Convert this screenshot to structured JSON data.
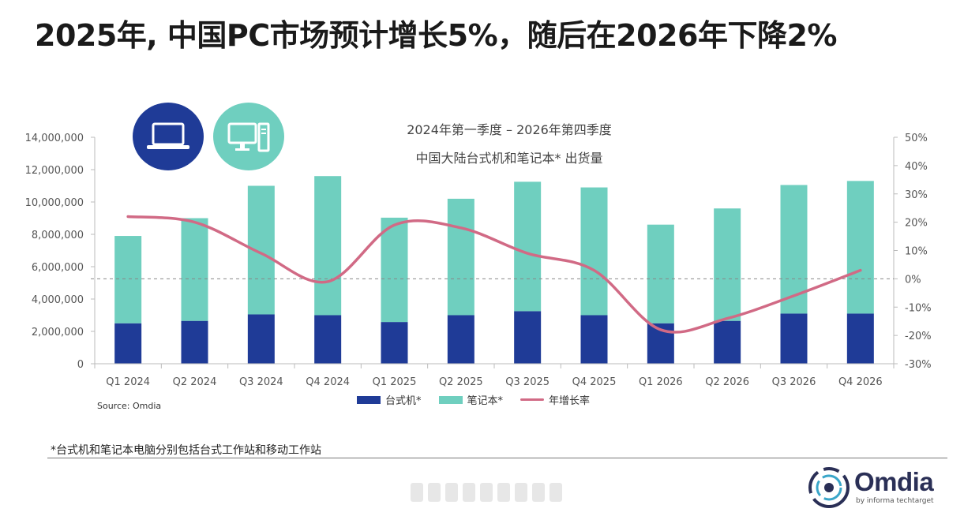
{
  "headline": "2025年, 中国PC市场预计增长5%，随后在2026年下降2%",
  "chart_data": {
    "type": "bar",
    "stacked": true,
    "title": "2024年第一季度 – 2026年第四季度",
    "subtitle": "中国大陆台式机和笔记本* 出货量",
    "categories": [
      "Q1 2024",
      "Q2 2024",
      "Q3 2024",
      "Q4 2024",
      "Q1 2025",
      "Q2 2025",
      "Q3 2025",
      "Q4 2025",
      "Q1 2026",
      "Q2 2026",
      "Q3 2026",
      "Q4 2026"
    ],
    "series": [
      {
        "name": "台式机*",
        "type": "bar",
        "axis": "left",
        "color": "#1f3b97",
        "values": [
          2500000,
          2650000,
          3050000,
          3000000,
          2580000,
          3000000,
          3250000,
          3000000,
          2500000,
          2650000,
          3100000,
          3100000
        ]
      },
      {
        "name": "笔记本*",
        "type": "bar",
        "axis": "left",
        "color": "#6fcfbf",
        "values": [
          5400000,
          6350000,
          7950000,
          8600000,
          6450000,
          7200000,
          8000000,
          7900000,
          6100000,
          6950000,
          7950000,
          8200000
        ]
      },
      {
        "name": "年增长率",
        "type": "line",
        "axis": "right",
        "color": "#d16a85",
        "values": [
          22,
          20,
          9,
          -1,
          19,
          18,
          9,
          3,
          -18,
          -14,
          -6,
          3
        ]
      }
    ],
    "y_left": {
      "min": 0,
      "max": 14000000,
      "ticks": [
        "0",
        "2,000,000",
        "4,000,000",
        "6,000,000",
        "8,000,000",
        "10,000,000",
        "12,000,000",
        "14,000,000"
      ]
    },
    "y_right": {
      "min": -30,
      "max": 50,
      "ticks": [
        "-30%",
        "-20%",
        "-10%",
        "0%",
        "10%",
        "20%",
        "30%",
        "40%",
        "50%"
      ]
    },
    "reference_line": {
      "axis": "right",
      "value": 0,
      "style": "dashed"
    },
    "grid": false,
    "legend_position": "bottom"
  },
  "icons": {
    "laptop": "laptop-icon",
    "desktop": "desktop-icon"
  },
  "source": "Source: Omdia",
  "footnote": "*台式机和笔记本电脑分别包括台式工作站和移动工作站",
  "logo": {
    "name": "Omdia",
    "tagline": "by informa techtarget"
  }
}
